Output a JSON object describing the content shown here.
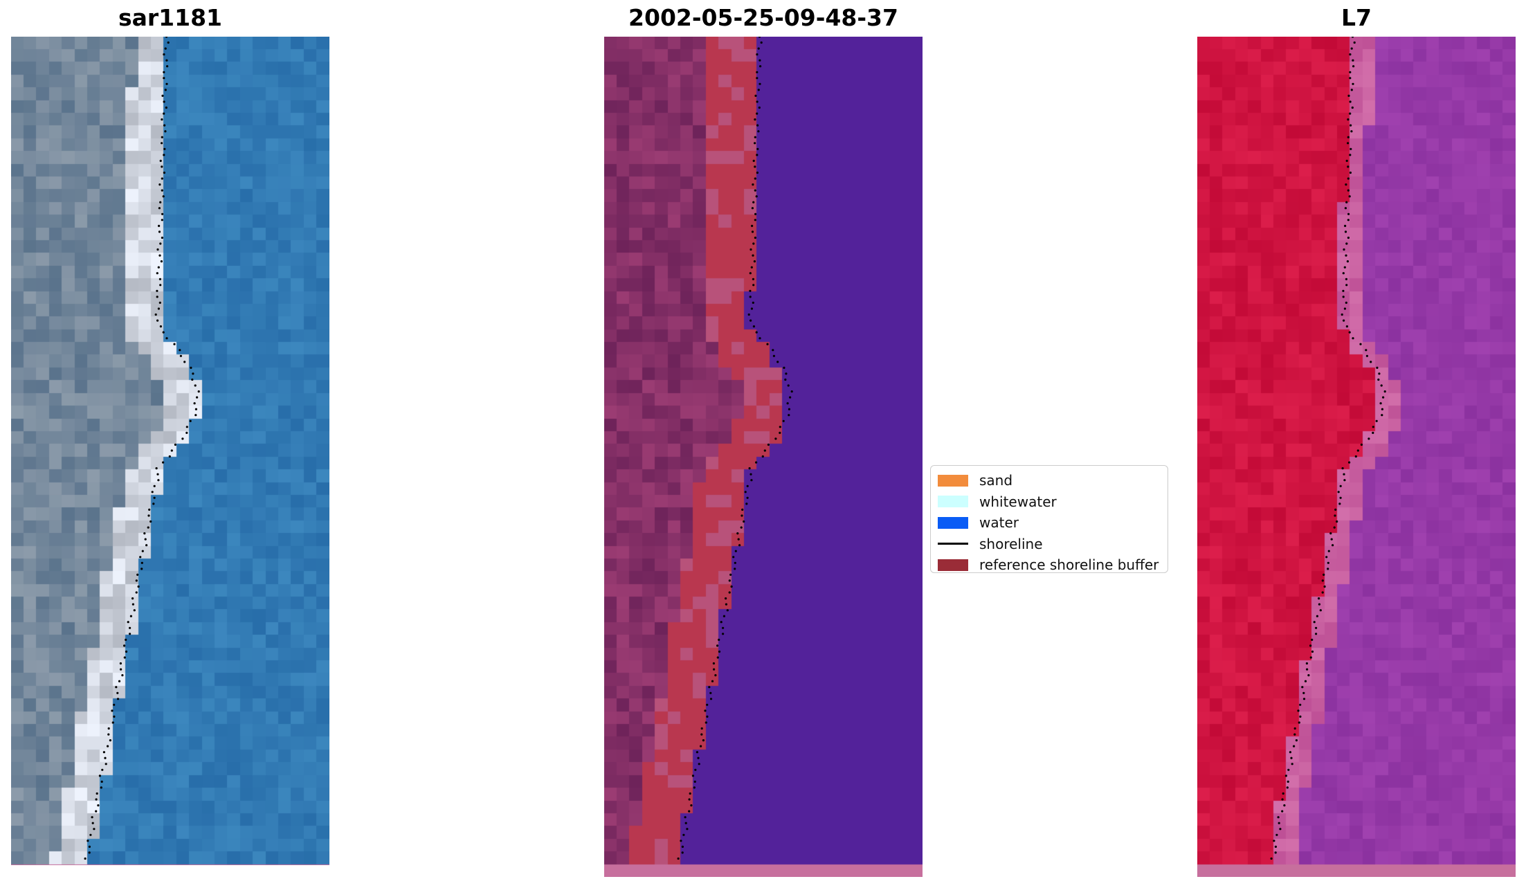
{
  "panels": [
    {
      "title": "sar1181",
      "variant": "rgb"
    },
    {
      "title": "2002-05-25-09-48-37",
      "variant": "classified"
    },
    {
      "title": "L7",
      "variant": "falsecolor"
    }
  ],
  "legend": {
    "items": [
      {
        "label": "sand",
        "color": "#f28c3c",
        "kind": "patch"
      },
      {
        "label": "whitewater",
        "color": "#ccffff",
        "kind": "patch"
      },
      {
        "label": "water",
        "color": "#0a5cf5",
        "kind": "patch"
      },
      {
        "label": "shoreline",
        "color": "#000000",
        "kind": "line"
      },
      {
        "label": "reference shoreline buffer",
        "color": "#9a2c37",
        "kind": "patch"
      }
    ]
  }
}
